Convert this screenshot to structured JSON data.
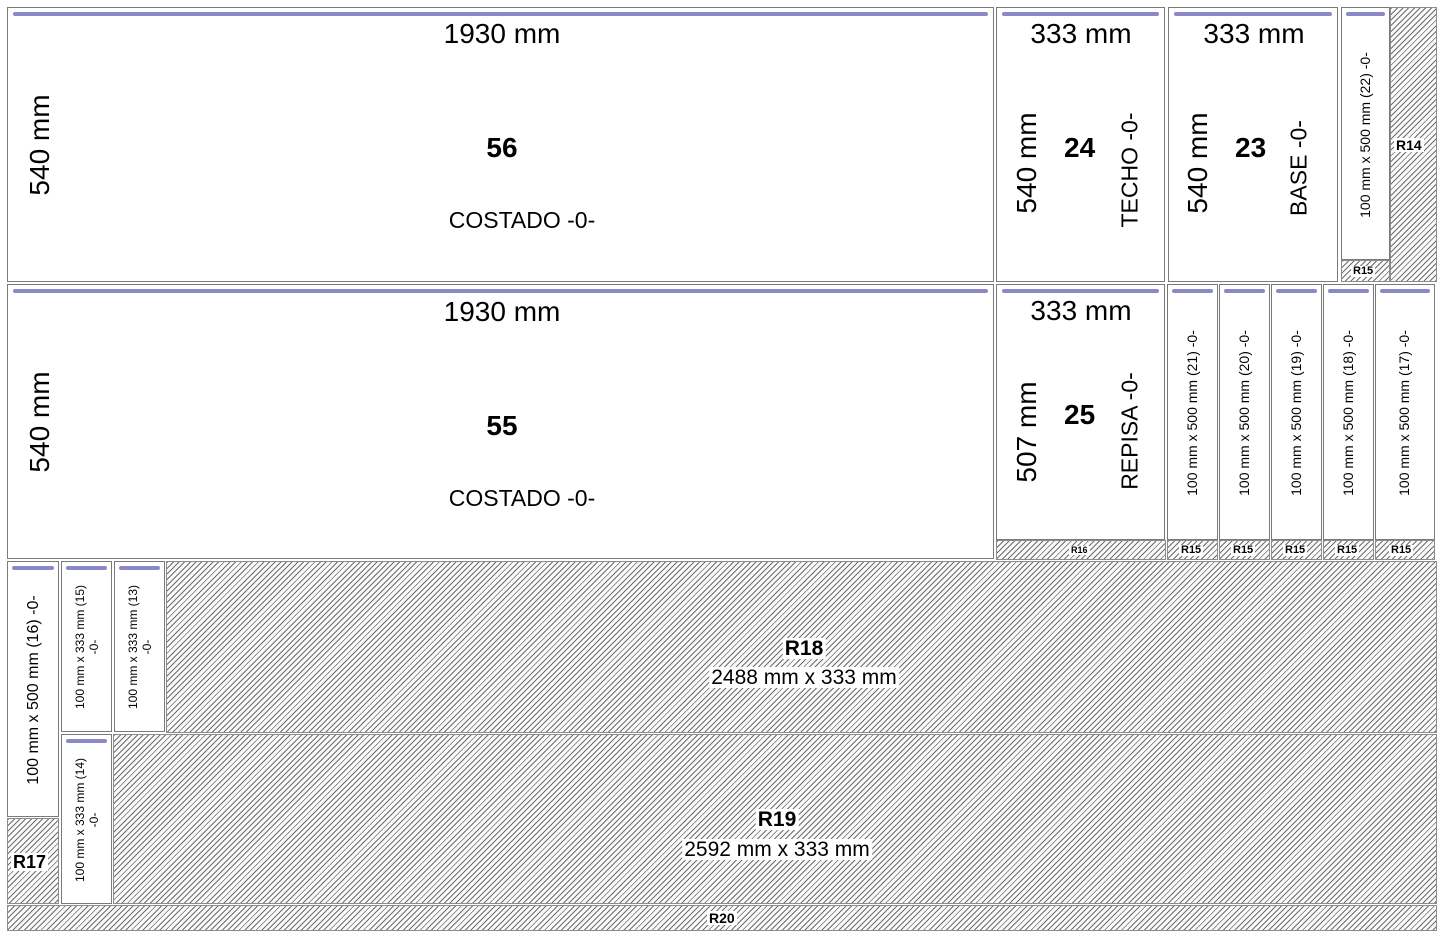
{
  "pieces": {
    "p56": {
      "width": "1930 mm",
      "height": "540 mm",
      "number": "56",
      "name": "COSTADO  -0-"
    },
    "p55": {
      "width": "1930 mm",
      "height": "540 mm",
      "number": "55",
      "name": "COSTADO  -0-"
    },
    "p24": {
      "width": "333 mm",
      "height": "540 mm",
      "number": "24",
      "name": "TECHO  -0-"
    },
    "p23": {
      "width": "333 mm",
      "height": "540 mm",
      "number": "23",
      "name": "BASE  -0-"
    },
    "p25": {
      "width": "333 mm",
      "height": "507 mm",
      "number": "25",
      "name": "REPISA  -0-"
    },
    "s22": {
      "label": "100 mm x 500 mm (22)  -0-"
    },
    "s21": {
      "label": "100 mm x 500 mm (21)  -0-"
    },
    "s20": {
      "label": "100 mm x 500 mm (20)  -0-"
    },
    "s19": {
      "label": "100 mm x 500 mm (19)  -0-"
    },
    "s18": {
      "label": "100 mm x 500 mm (18)  -0-"
    },
    "s17": {
      "label": "100 mm x 500 mm (17)  -0-"
    },
    "s16": {
      "label": "100 mm x 500 mm (16)  -0-"
    },
    "s15": {
      "line1": "100 mm x 333 mm (15)",
      "line2": "-0-"
    },
    "s14": {
      "line1": "100 mm x 333 mm (14)",
      "line2": "-0-"
    },
    "s13": {
      "line1": "100 mm x 333 mm (13)",
      "line2": "-0-"
    }
  },
  "remnants": {
    "r14": "R14",
    "r15": "R15",
    "r16": "R16",
    "r17": "R17",
    "r18": {
      "id": "R18",
      "size": "2488 mm x 333 mm"
    },
    "r19": {
      "id": "R19",
      "size": "2592 mm x 333 mm"
    },
    "r20": "R20"
  },
  "colors": {
    "grain_bar": "#8b88c7",
    "hatch": "#6e6e6e",
    "border": "#7a7a7a"
  }
}
